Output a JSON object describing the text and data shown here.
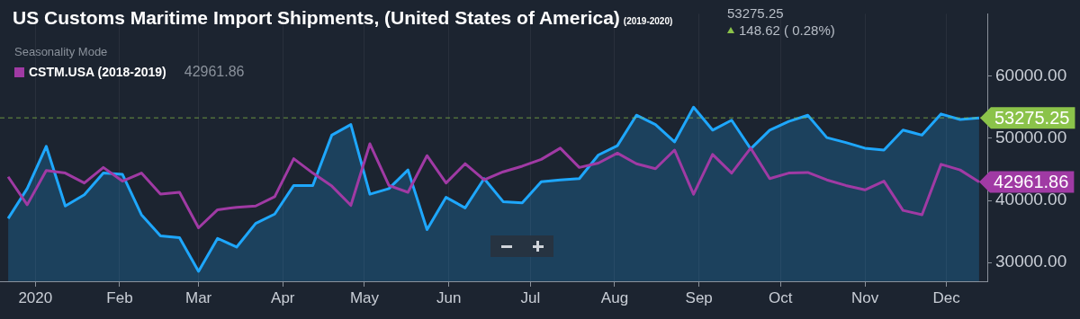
{
  "chart_data": {
    "type": "line",
    "title": "US Customs Maritime Import Shipments, (United States of America)",
    "subtitle": "(2019-2020)",
    "legend_title": "Seasonality Mode",
    "legend": "top left",
    "grid": "x",
    "marker": "none",
    "line_style": "solid",
    "x": [
      "2019-12-22",
      "2019-12-29",
      "2020-01-05",
      "2020-01-12",
      "2020-01-19",
      "2020-01-26",
      "2020-02-02",
      "2020-02-09",
      "2020-02-16",
      "2020-02-23",
      "2020-03-01",
      "2020-03-08",
      "2020-03-15",
      "2020-03-22",
      "2020-03-29",
      "2020-04-05",
      "2020-04-12",
      "2020-04-19",
      "2020-04-26",
      "2020-05-03",
      "2020-05-10",
      "2020-05-17",
      "2020-05-24",
      "2020-05-31",
      "2020-06-07",
      "2020-06-14",
      "2020-06-21",
      "2020-06-28",
      "2020-07-05",
      "2020-07-12",
      "2020-07-19",
      "2020-07-26",
      "2020-08-02",
      "2020-08-09",
      "2020-08-16",
      "2020-08-23",
      "2020-08-30",
      "2020-09-06",
      "2020-09-13",
      "2020-09-20",
      "2020-09-27",
      "2020-10-04",
      "2020-10-11",
      "2020-10-18",
      "2020-10-25",
      "2020-11-01",
      "2020-11-08",
      "2020-11-15",
      "2020-11-22",
      "2020-11-29",
      "2020-12-06",
      "2020-12-13"
    ],
    "xlim": [
      "2019-12-19",
      "2020-12-16"
    ],
    "xticks": [
      {
        "value": "2020-01-01",
        "label": "2020"
      },
      {
        "value": "2020-02-01",
        "label": "Feb"
      },
      {
        "value": "2020-03-01",
        "label": "Mar"
      },
      {
        "value": "2020-04-01",
        "label": "Apr"
      },
      {
        "value": "2020-05-01",
        "label": "May"
      },
      {
        "value": "2020-06-01",
        "label": "Jun"
      },
      {
        "value": "2020-07-01",
        "label": "Jul"
      },
      {
        "value": "2020-08-01",
        "label": "Aug"
      },
      {
        "value": "2020-09-01",
        "label": "Sep"
      },
      {
        "value": "2020-10-01",
        "label": "Oct"
      },
      {
        "value": "2020-11-01",
        "label": "Nov"
      },
      {
        "value": "2020-12-01",
        "label": "Dec"
      }
    ],
    "ylim": [
      27000,
      70000
    ],
    "yticks": [
      {
        "value": 30000,
        "label": "30000.00"
      },
      {
        "value": 40000,
        "label": "40000.00"
      },
      {
        "value": 50000,
        "label": "50000.00"
      },
      {
        "value": 60000,
        "label": "60000.00"
      }
    ],
    "series": [
      {
        "type": "area",
        "color": "#1ea7fd",
        "values": [
          37100,
          41900,
          48700,
          39100,
          40900,
          44400,
          44200,
          37700,
          34300,
          34000,
          28600,
          33900,
          32500,
          36300,
          37800,
          42400,
          42400,
          50500,
          52200,
          41000,
          41900,
          44900,
          35300,
          40500,
          38800,
          43500,
          39800,
          39600,
          43000,
          43300,
          43500,
          47300,
          48800,
          53700,
          52200,
          49400,
          55000,
          51300,
          52900,
          48300,
          51300,
          52700,
          53700,
          50100,
          49300,
          48400,
          48100,
          51300,
          50500,
          53900,
          53000,
          53275.25
        ]
      },
      {
        "type": "line",
        "name": "CSTM.USA (2018-2019)",
        "color": "#a03aa4",
        "values": [
          43800,
          39300,
          44800,
          44400,
          42800,
          45300,
          43100,
          44400,
          41000,
          41300,
          35600,
          38500,
          38900,
          39100,
          40600,
          46700,
          44400,
          42300,
          39200,
          49100,
          42400,
          41300,
          47200,
          42800,
          45900,
          43300,
          44600,
          45500,
          46600,
          48400,
          45300,
          46000,
          47600,
          45900,
          45100,
          48100,
          41000,
          47400,
          44400,
          48400,
          43500,
          44400,
          44500,
          43300,
          42400,
          41700,
          43100,
          38400,
          37700,
          45800,
          44900,
          42961.86
        ]
      }
    ],
    "ref_lines": [
      {
        "axis": "y",
        "value": 53275.25,
        "label": "53275.25",
        "color": "#8bc34a",
        "line_style": "dashed"
      }
    ],
    "annotations": [
      "53275.25",
      "148.62 ( 0.28%)",
      "42961.86",
      {
        "text": "42961.86",
        "x": "2020-12-13",
        "y": 42961.86
      }
    ]
  }
}
